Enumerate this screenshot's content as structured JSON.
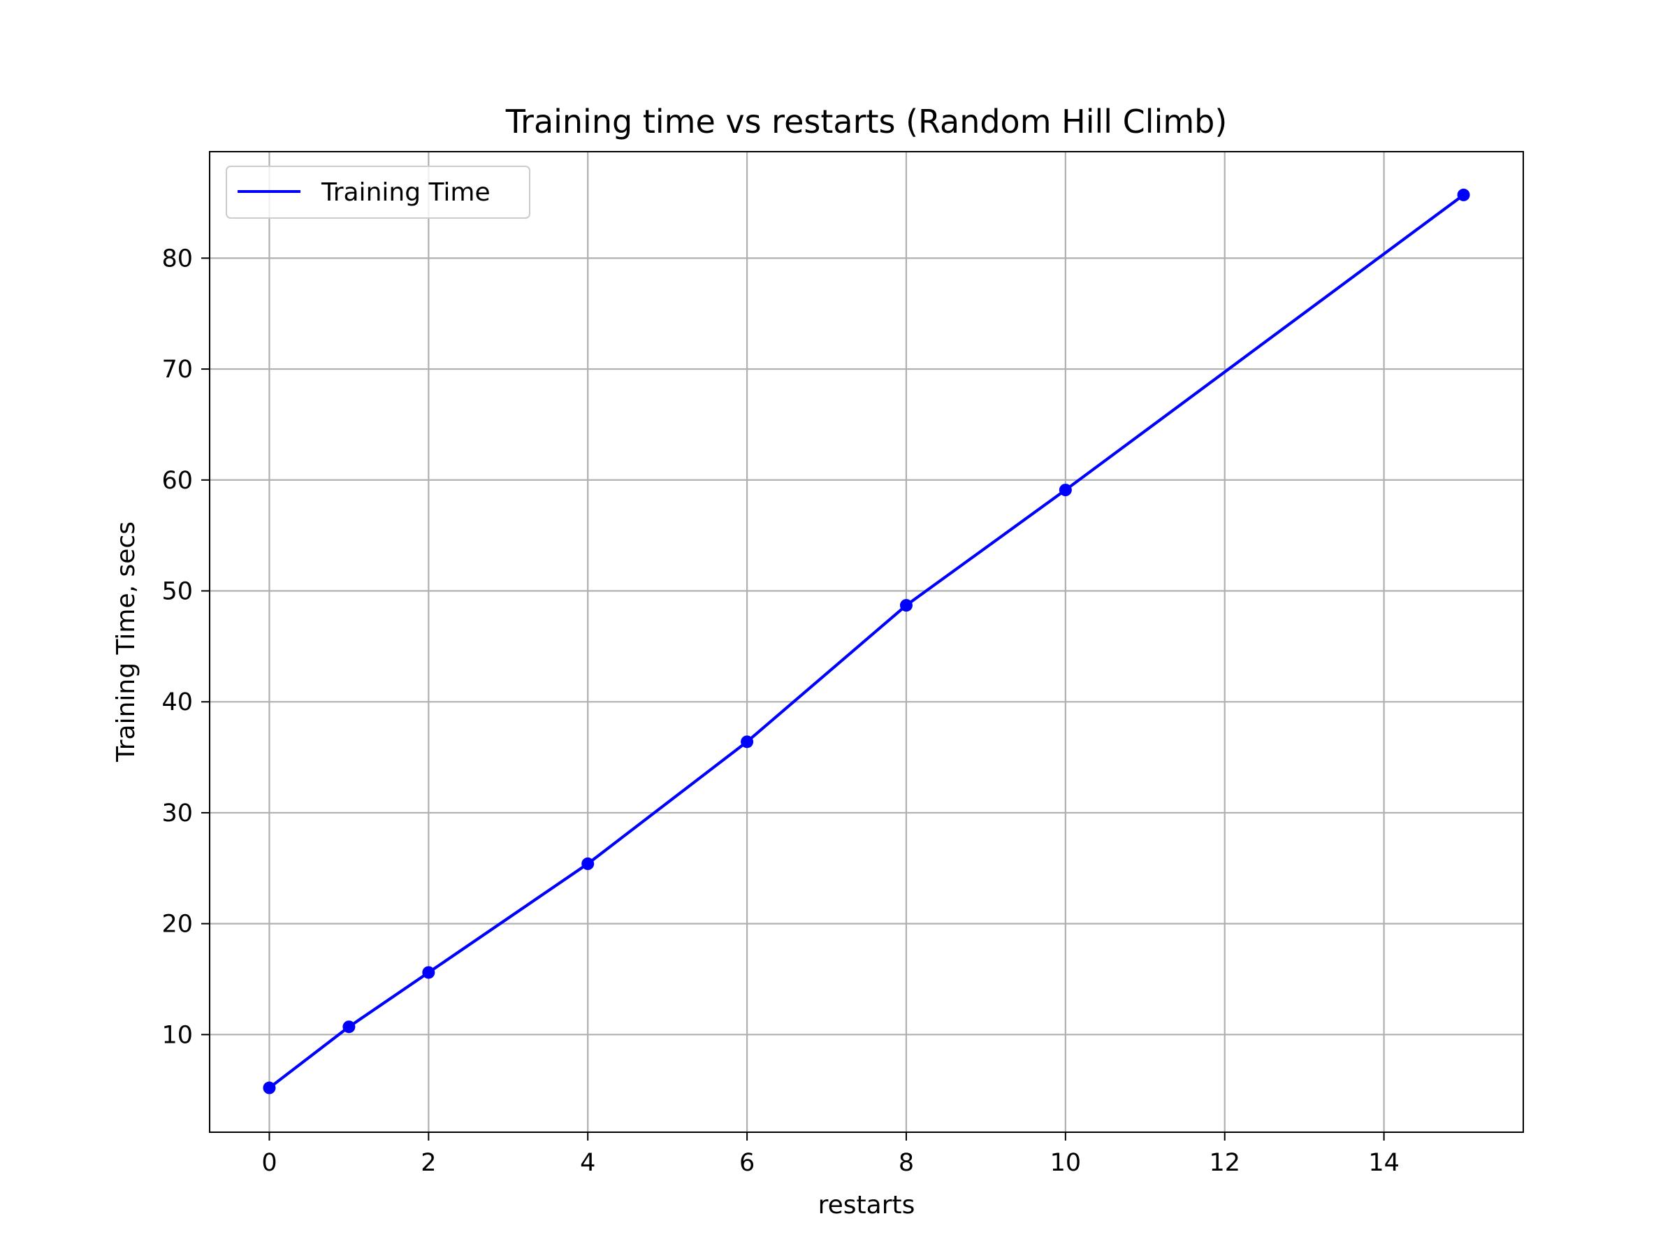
{
  "chart_data": {
    "type": "line",
    "title": "Training time vs restarts (Random Hill Climb)",
    "xlabel": "restarts",
    "ylabel": "Training Time, secs",
    "xlim": [
      -0.75,
      15.75
    ],
    "ylim": [
      1.2,
      89.6
    ],
    "xticks": [
      0,
      2,
      4,
      6,
      8,
      10,
      12,
      14
    ],
    "yticks": [
      10,
      20,
      30,
      40,
      50,
      60,
      70,
      80
    ],
    "grid": true,
    "legend_position": "top-left",
    "series": [
      {
        "name": "Training Time",
        "color": "#0000ff",
        "markers": true,
        "x": [
          0,
          1,
          2,
          4,
          6,
          8,
          10,
          15
        ],
        "y": [
          5.2,
          10.7,
          15.6,
          25.4,
          36.4,
          48.7,
          59.1,
          85.7
        ]
      }
    ]
  }
}
